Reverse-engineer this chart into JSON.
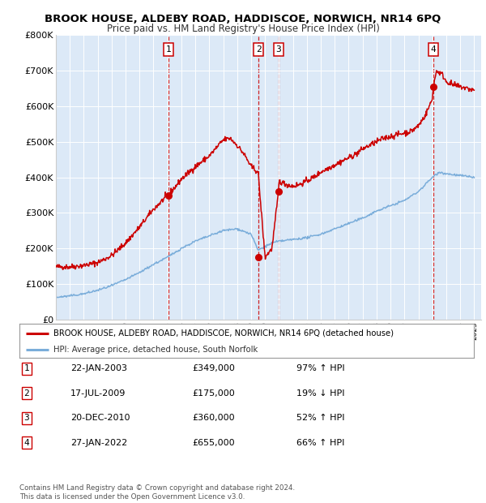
{
  "title": "BROOK HOUSE, ALDEBY ROAD, HADDISCOE, NORWICH, NR14 6PQ",
  "subtitle": "Price paid vs. HM Land Registry's House Price Index (HPI)",
  "background_color": "#dce9f7",
  "ylim": [
    0,
    800000
  ],
  "yticks": [
    0,
    100000,
    200000,
    300000,
    400000,
    500000,
    600000,
    700000,
    800000
  ],
  "ytick_labels": [
    "£0",
    "£100K",
    "£200K",
    "£300K",
    "£400K",
    "£500K",
    "£600K",
    "£700K",
    "£800K"
  ],
  "xmin": 1995.0,
  "xmax": 2025.5,
  "sale_dates": [
    2003.06,
    2009.54,
    2010.97,
    2022.07
  ],
  "sale_prices": [
    349000,
    175000,
    360000,
    655000
  ],
  "sale_labels": [
    "1",
    "2",
    "3",
    "4"
  ],
  "red_line_color": "#cc0000",
  "blue_line_color": "#7aadda",
  "dashed_line_color": "#cc0000",
  "legend_entries": [
    "BROOK HOUSE, ALDEBY ROAD, HADDISCOE, NORWICH, NR14 6PQ (detached house)",
    "HPI: Average price, detached house, South Norfolk"
  ],
  "table_data": [
    [
      "1",
      "22-JAN-2003",
      "£349,000",
      "97% ↑ HPI"
    ],
    [
      "2",
      "17-JUL-2009",
      "£175,000",
      "19% ↓ HPI"
    ],
    [
      "3",
      "20-DEC-2010",
      "£360,000",
      "52% ↑ HPI"
    ],
    [
      "4",
      "27-JAN-2022",
      "£655,000",
      "66% ↑ HPI"
    ]
  ],
  "footnote": "Contains HM Land Registry data © Crown copyright and database right 2024.\nThis data is licensed under the Open Government Licence v3.0.",
  "red_key_x": [
    1995,
    1996,
    1997,
    1998,
    1999,
    2000,
    2001,
    2002,
    2003,
    2003.5,
    2004,
    2005,
    2006,
    2007,
    2007.5,
    2008,
    2008.5,
    2009,
    2009.5,
    2010,
    2010.5,
    2010.97,
    2011,
    2011.5,
    2012,
    2012.5,
    2013,
    2013.5,
    2014,
    2014.5,
    2015,
    2015.5,
    2016,
    2016.5,
    2017,
    2017.5,
    2018,
    2018.5,
    2019,
    2019.5,
    2020,
    2020.5,
    2021,
    2021.5,
    2022,
    2022.07,
    2022.3,
    2022.7,
    2023,
    2023.5,
    2024,
    2024.5,
    2025
  ],
  "red_key_y": [
    148000,
    148000,
    152000,
    160000,
    180000,
    215000,
    260000,
    310000,
    349000,
    370000,
    395000,
    430000,
    460000,
    505000,
    510000,
    490000,
    465000,
    430000,
    415000,
    175000,
    200000,
    360000,
    390000,
    380000,
    375000,
    380000,
    390000,
    400000,
    415000,
    425000,
    435000,
    445000,
    455000,
    465000,
    480000,
    490000,
    500000,
    510000,
    515000,
    520000,
    525000,
    530000,
    545000,
    575000,
    620000,
    655000,
    700000,
    690000,
    670000,
    660000,
    655000,
    650000,
    645000
  ],
  "blue_key_x": [
    1995,
    1996,
    1997,
    1998,
    1999,
    2000,
    2001,
    2002,
    2003,
    2004,
    2005,
    2006,
    2007,
    2008,
    2009,
    2009.5,
    2010,
    2010.5,
    2011,
    2012,
    2013,
    2014,
    2015,
    2016,
    2017,
    2018,
    2019,
    2020,
    2021,
    2022,
    2022.5,
    2023,
    2024,
    2025
  ],
  "blue_key_y": [
    62000,
    66000,
    72000,
    82000,
    95000,
    112000,
    132000,
    155000,
    175000,
    200000,
    220000,
    235000,
    250000,
    255000,
    240000,
    195000,
    205000,
    215000,
    220000,
    225000,
    230000,
    240000,
    255000,
    270000,
    285000,
    305000,
    320000,
    335000,
    360000,
    400000,
    415000,
    410000,
    405000,
    400000
  ]
}
